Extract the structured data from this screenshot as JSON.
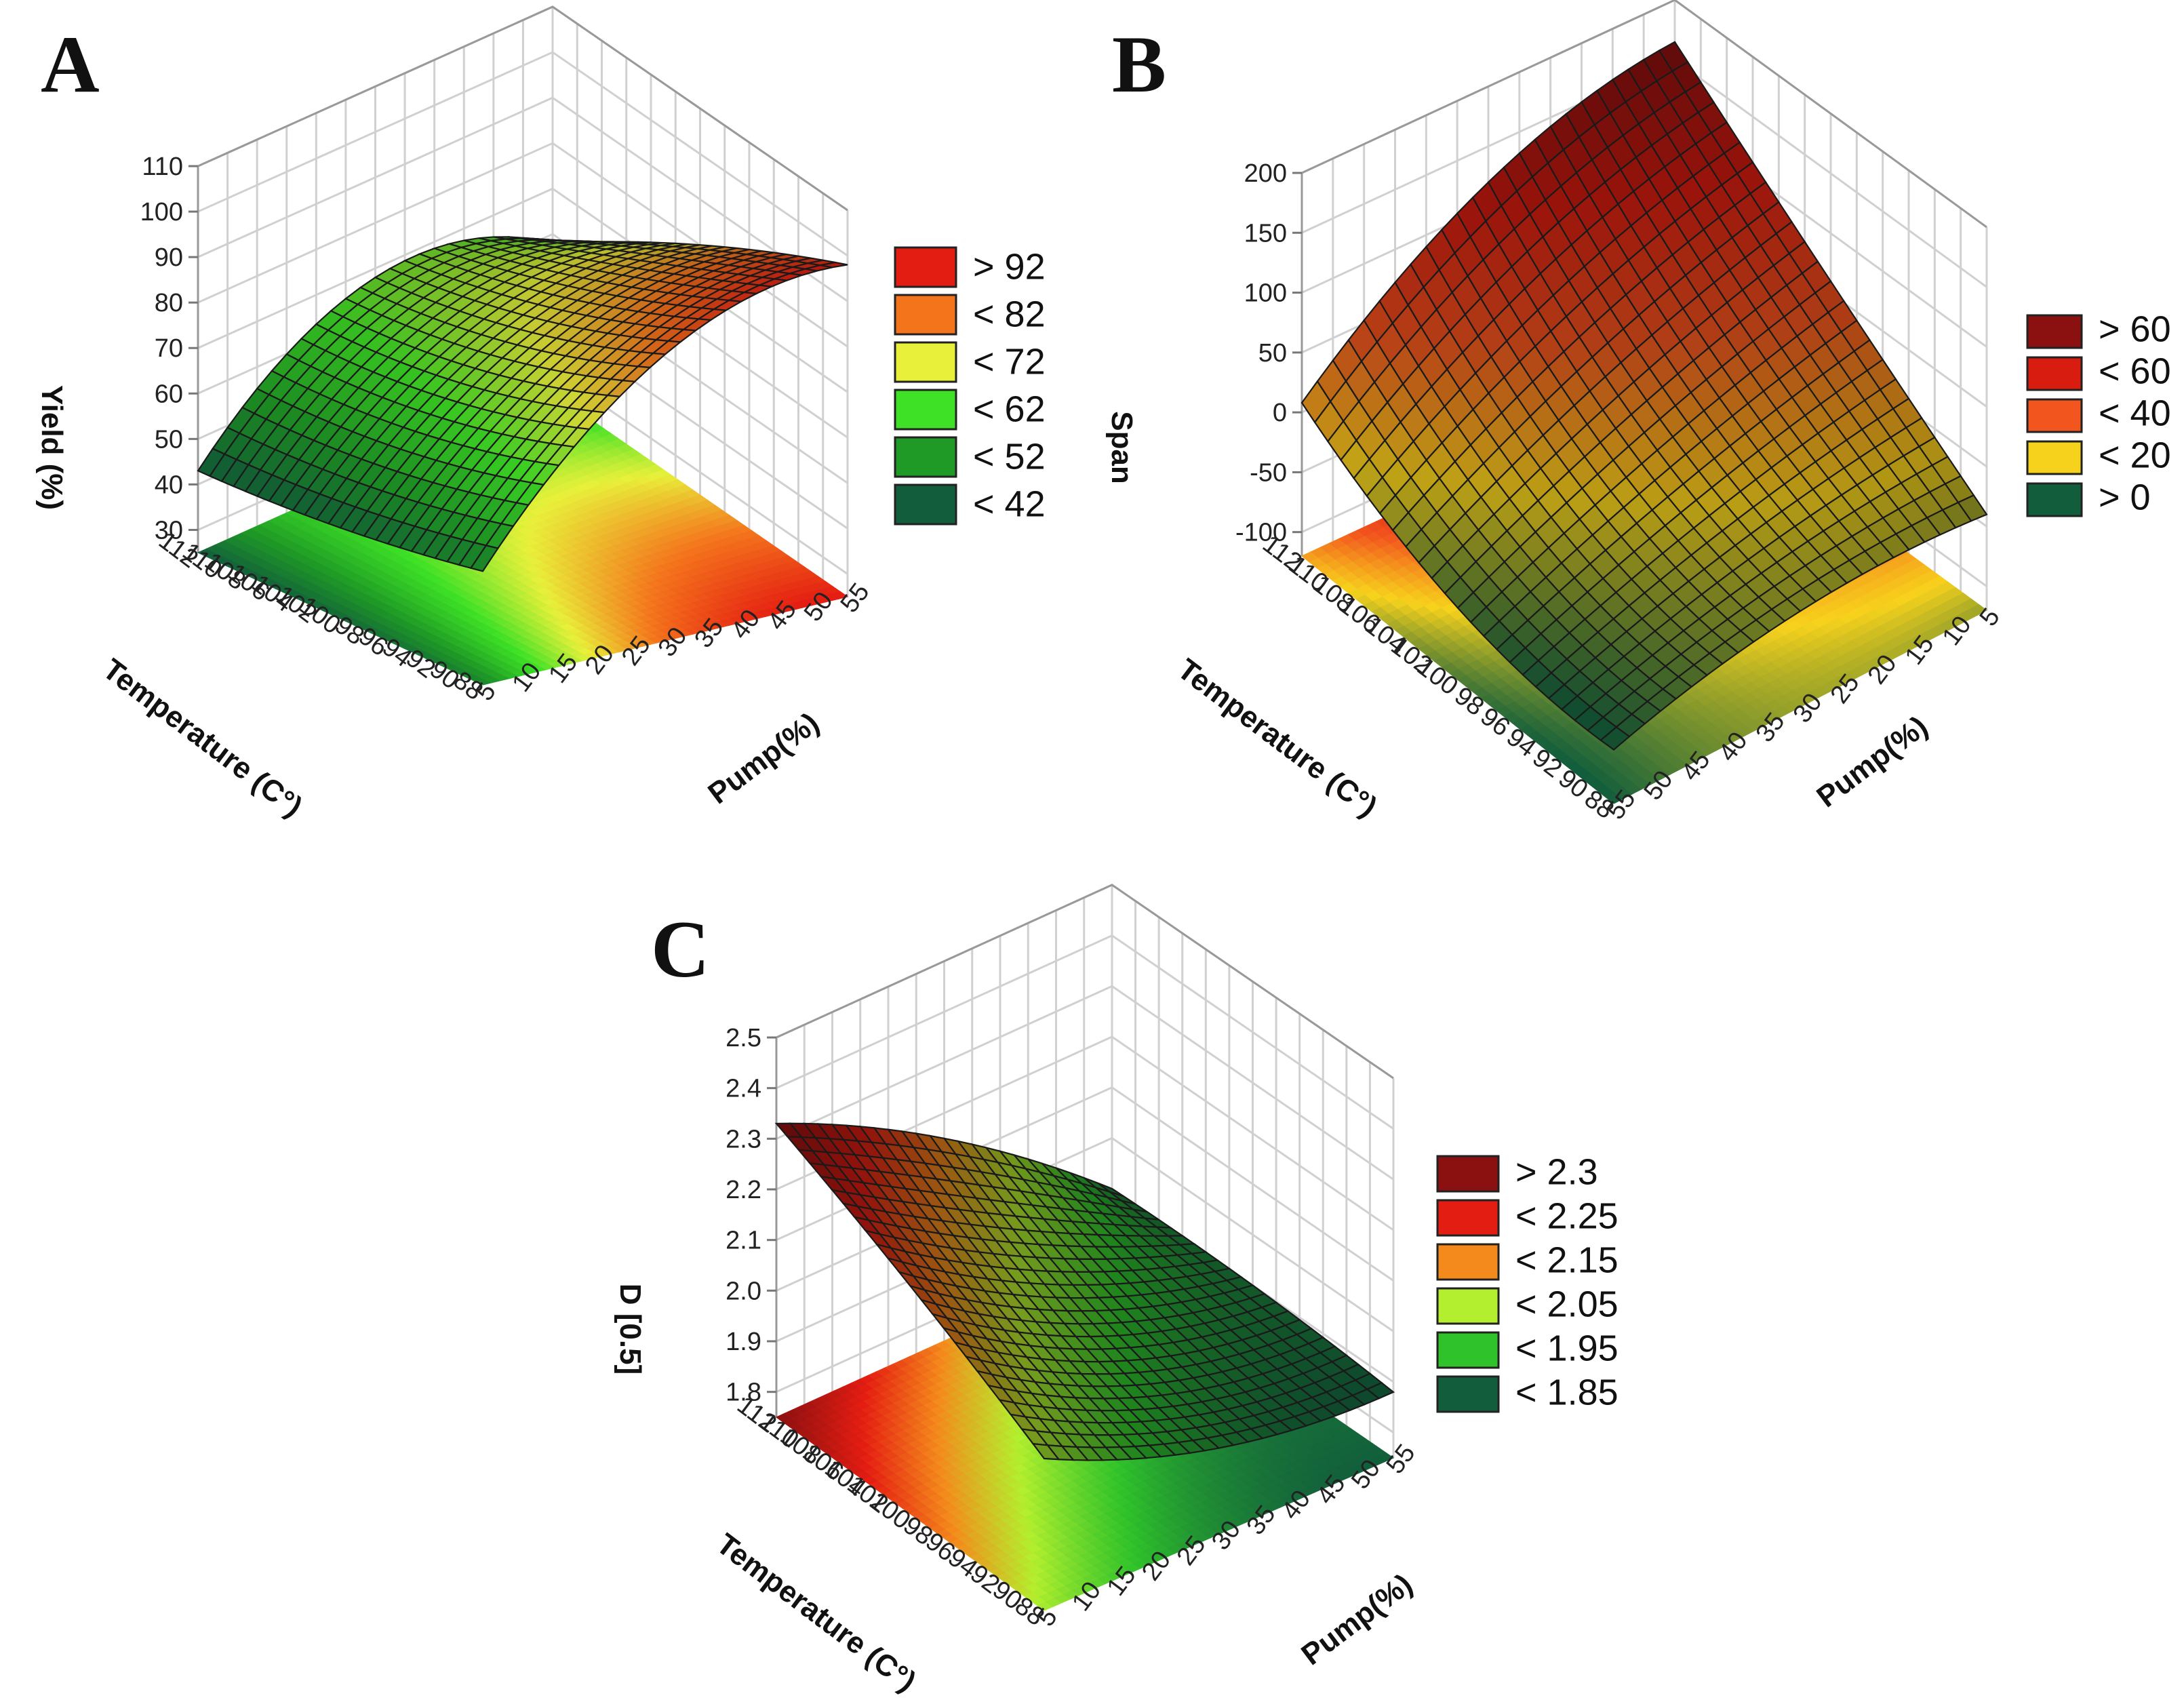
{
  "chart_data": [
    {
      "panel": "A",
      "type": "surface3d",
      "zlabel": "Yield (%)",
      "xlabel": "Temperature (C°)",
      "ylabel": "Pump(%)",
      "temperature_ticks": [
        "112",
        "110",
        "108",
        "106",
        "104",
        "102",
        "100",
        "98",
        "96",
        "94",
        "92",
        "90",
        "88"
      ],
      "pump_ticks": [
        "5",
        "10",
        "15",
        "20",
        "25",
        "30",
        "35",
        "40",
        "45",
        "50",
        "55"
      ],
      "z_ticks": [
        "30",
        "40",
        "50",
        "60",
        "70",
        "80",
        "90",
        "100",
        "110"
      ],
      "zlim": [
        25,
        110
      ],
      "temperature_range": [
        88,
        112
      ],
      "pump_range": [
        5,
        55
      ],
      "temperature_axis_order": "ascending",
      "pump_axis_order": "ascending",
      "legend": [
        {
          "label": ">  92",
          "color": "#e41d12"
        },
        {
          "label": "< 82",
          "color": "#f4741c"
        },
        {
          "label": "< 72",
          "color": "#e8f03a"
        },
        {
          "label": "< 62",
          "color": "#3ee126"
        },
        {
          "label": "< 52",
          "color": "#1f9a26"
        },
        {
          "label": "< 42",
          "color": "#125e3c"
        }
      ],
      "surface_samples": [
        {
          "temperature": 112,
          "pump": 5,
          "value": 43
        },
        {
          "temperature": 112,
          "pump": 30,
          "value": 68
        },
        {
          "temperature": 112,
          "pump": 55,
          "value": 58
        },
        {
          "temperature": 100,
          "pump": 5,
          "value": 45
        },
        {
          "temperature": 100,
          "pump": 30,
          "value": 75
        },
        {
          "temperature": 100,
          "pump": 55,
          "value": 80
        },
        {
          "temperature": 88,
          "pump": 5,
          "value": 50
        },
        {
          "temperature": 88,
          "pump": 30,
          "value": 88
        },
        {
          "temperature": 88,
          "pump": 55,
          "value": 98
        }
      ]
    },
    {
      "panel": "B",
      "type": "surface3d",
      "zlabel": "Span",
      "xlabel": "Temperature (C°)",
      "ylabel": "Pump(%)",
      "temperature_ticks": [
        "112",
        "110",
        "108",
        "106",
        "104",
        "102",
        "100",
        "98",
        "96",
        "94",
        "92",
        "90",
        "88"
      ],
      "pump_ticks": [
        "55",
        "50",
        "45",
        "40",
        "35",
        "30",
        "25",
        "20",
        "15",
        "10",
        "5"
      ],
      "z_ticks": [
        "-100",
        "-50",
        "0",
        "50",
        "100",
        "150",
        "200"
      ],
      "zlim": [
        -120,
        200
      ],
      "temperature_range": [
        88,
        112
      ],
      "pump_range": [
        5,
        55
      ],
      "temperature_axis_order": "ascending",
      "pump_axis_order": "descending",
      "legend": [
        {
          "label": "> 60",
          "color": "#8b1010"
        },
        {
          "label": "< 60",
          "color": "#d91c10"
        },
        {
          "label": "< 40",
          "color": "#f2551e"
        },
        {
          "label": "< 20",
          "color": "#f7d21c"
        },
        {
          "label": "> 0",
          "color": "#125e3c"
        }
      ],
      "surface_samples": [
        {
          "temperature": 112,
          "pump": 55,
          "value": 8
        },
        {
          "temperature": 112,
          "pump": 30,
          "value": 120
        },
        {
          "temperature": 112,
          "pump": 5,
          "value": 165
        },
        {
          "temperature": 100,
          "pump": 55,
          "value": -60
        },
        {
          "temperature": 100,
          "pump": 30,
          "value": 10
        },
        {
          "temperature": 100,
          "pump": 5,
          "value": 60
        },
        {
          "temperature": 88,
          "pump": 55,
          "value": -75
        },
        {
          "temperature": 88,
          "pump": 30,
          "value": -40
        },
        {
          "temperature": 88,
          "pump": 5,
          "value": -40
        }
      ]
    },
    {
      "panel": "C",
      "type": "surface3d",
      "zlabel": "D [0.5]",
      "xlabel": "Temperature (C°)",
      "ylabel": "Pump(%)",
      "temperature_ticks": [
        "112",
        "110",
        "108",
        "106",
        "104",
        "102",
        "100",
        "98",
        "96",
        "94",
        "92",
        "90",
        "88"
      ],
      "pump_ticks": [
        "5",
        "10",
        "15",
        "20",
        "25",
        "30",
        "35",
        "40",
        "45",
        "50",
        "55"
      ],
      "z_ticks": [
        "1.8",
        "1.9",
        "2.0",
        "2.1",
        "2.2",
        "2.3",
        "2.4",
        "2.5"
      ],
      "zlim": [
        1.75,
        2.5
      ],
      "temperature_range": [
        88,
        112
      ],
      "pump_range": [
        5,
        55
      ],
      "temperature_axis_order": "ascending",
      "pump_axis_order": "ascending",
      "legend": [
        {
          "label": "> 2.3",
          "color": "#8b1010"
        },
        {
          "label": "< 2.25",
          "color": "#e41d12"
        },
        {
          "label": "< 2.15",
          "color": "#f48a1c"
        },
        {
          "label": "< 2.05",
          "color": "#b3ef2e"
        },
        {
          "label": "< 1.95",
          "color": "#2fc22a"
        },
        {
          "label": "< 1.85",
          "color": "#125e3c"
        }
      ],
      "surface_samples": [
        {
          "temperature": 112,
          "pump": 5,
          "value": 2.33
        },
        {
          "temperature": 112,
          "pump": 30,
          "value": 2.15
        },
        {
          "temperature": 112,
          "pump": 55,
          "value": 1.9
        },
        {
          "temperature": 100,
          "pump": 5,
          "value": 2.2
        },
        {
          "temperature": 100,
          "pump": 30,
          "value": 2.0
        },
        {
          "temperature": 100,
          "pump": 55,
          "value": 1.9
        },
        {
          "temperature": 88,
          "pump": 5,
          "value": 2.05
        },
        {
          "temperature": 88,
          "pump": 30,
          "value": 1.92
        },
        {
          "temperature": 88,
          "pump": 55,
          "value": 1.88
        }
      ]
    }
  ]
}
